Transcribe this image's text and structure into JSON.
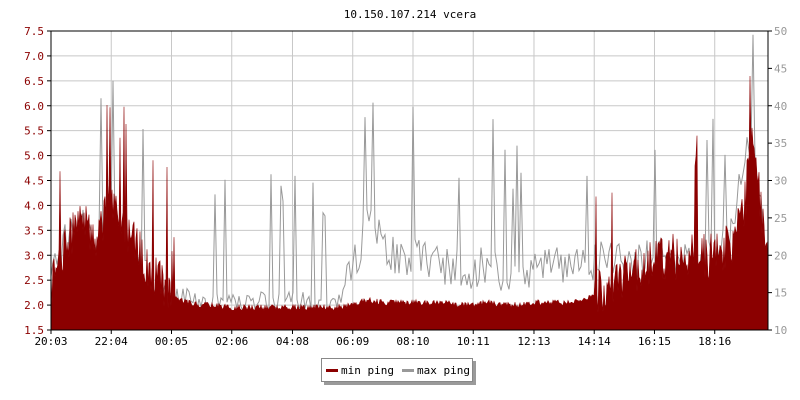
{
  "chart_data": {
    "type": "area",
    "title": "10.150.107.214 vcera",
    "x_tick_labels": [
      "20:03",
      "22:04",
      "00:05",
      "02:06",
      "04:08",
      "06:09",
      "08:10",
      "10:11",
      "12:13",
      "14:14",
      "16:15",
      "18:16"
    ],
    "y_left": {
      "ylim": [
        1.5,
        7.5
      ],
      "ticks": [
        "1.5",
        "2.0",
        "2.5",
        "3.0",
        "3.5",
        "4.0",
        "4.5",
        "5.0",
        "5.5",
        "6.0",
        "6.5",
        "7.0",
        "7.5"
      ]
    },
    "y_right": {
      "ylim": [
        10,
        50
      ],
      "ticks": [
        "10",
        "15",
        "20",
        "25",
        "30",
        "35",
        "40",
        "45",
        "50"
      ]
    },
    "grid": true,
    "legend_placement": "bottom-center",
    "series": [
      {
        "name": "min ping",
        "axis": "left",
        "color": "#8b0000",
        "style": "filled",
        "x": [
          "20:03",
          "20:33",
          "21:03",
          "21:33",
          "22:04",
          "22:34",
          "23:04",
          "23:34",
          "00:05",
          "00:35",
          "01:05",
          "01:35",
          "02:06",
          "02:36",
          "03:06",
          "03:36",
          "04:08",
          "04:38",
          "05:08",
          "05:38",
          "06:09",
          "06:39",
          "07:09",
          "07:39",
          "08:10",
          "08:40",
          "09:10",
          "09:40",
          "10:11",
          "10:41",
          "11:11",
          "11:41",
          "12:13",
          "12:43",
          "13:13",
          "13:43",
          "14:14",
          "14:44",
          "15:14",
          "15:44",
          "16:15",
          "16:45",
          "17:15",
          "17:45",
          "18:16",
          "18:46",
          "19:01",
          "19:16",
          "19:31",
          "19:46",
          "20:00"
        ],
        "values": [
          2.4,
          3.2,
          3.8,
          3.4,
          4.2,
          3.6,
          3.0,
          2.6,
          2.2,
          2.05,
          2.0,
          2.0,
          1.95,
          1.95,
          1.95,
          1.95,
          1.95,
          1.95,
          1.95,
          1.95,
          2.0,
          2.1,
          2.05,
          2.05,
          2.05,
          2.05,
          2.05,
          2.0,
          2.0,
          2.05,
          2.0,
          2.0,
          2.05,
          2.05,
          2.05,
          2.1,
          2.2,
          2.4,
          2.6,
          2.8,
          2.9,
          3.0,
          3.0,
          3.0,
          3.0,
          3.2,
          3.6,
          4.0,
          5.6,
          4.2,
          3.0
        ]
      },
      {
        "name": "max ping",
        "axis": "right",
        "color": "#999999",
        "style": "line",
        "x": [
          "20:03",
          "20:33",
          "21:03",
          "21:33",
          "22:04",
          "22:34",
          "23:04",
          "23:34",
          "00:05",
          "00:35",
          "01:05",
          "01:35",
          "02:06",
          "02:36",
          "03:06",
          "03:36",
          "04:08",
          "04:38",
          "05:08",
          "05:38",
          "06:09",
          "06:39",
          "07:09",
          "07:39",
          "08:10",
          "08:40",
          "09:10",
          "09:40",
          "10:11",
          "10:41",
          "11:11",
          "11:41",
          "12:13",
          "12:43",
          "13:13",
          "13:43",
          "14:14",
          "14:44",
          "15:14",
          "15:44",
          "16:15",
          "16:45",
          "17:15",
          "17:45",
          "18:16",
          "18:46",
          "19:01",
          "19:16",
          "19:31",
          "19:46",
          "20:00"
        ],
        "values": [
          18,
          22,
          25,
          21,
          24,
          20,
          18,
          16,
          14,
          15,
          14,
          14,
          14,
          14,
          14,
          14,
          14,
          14,
          14,
          14,
          18,
          24,
          22,
          19,
          20,
          19,
          19,
          18,
          18,
          19,
          18,
          18,
          19,
          19,
          19,
          19,
          19,
          20,
          19,
          19,
          20,
          20,
          19,
          19,
          20,
          22,
          28,
          32,
          38,
          30,
          20
        ]
      }
    ]
  }
}
